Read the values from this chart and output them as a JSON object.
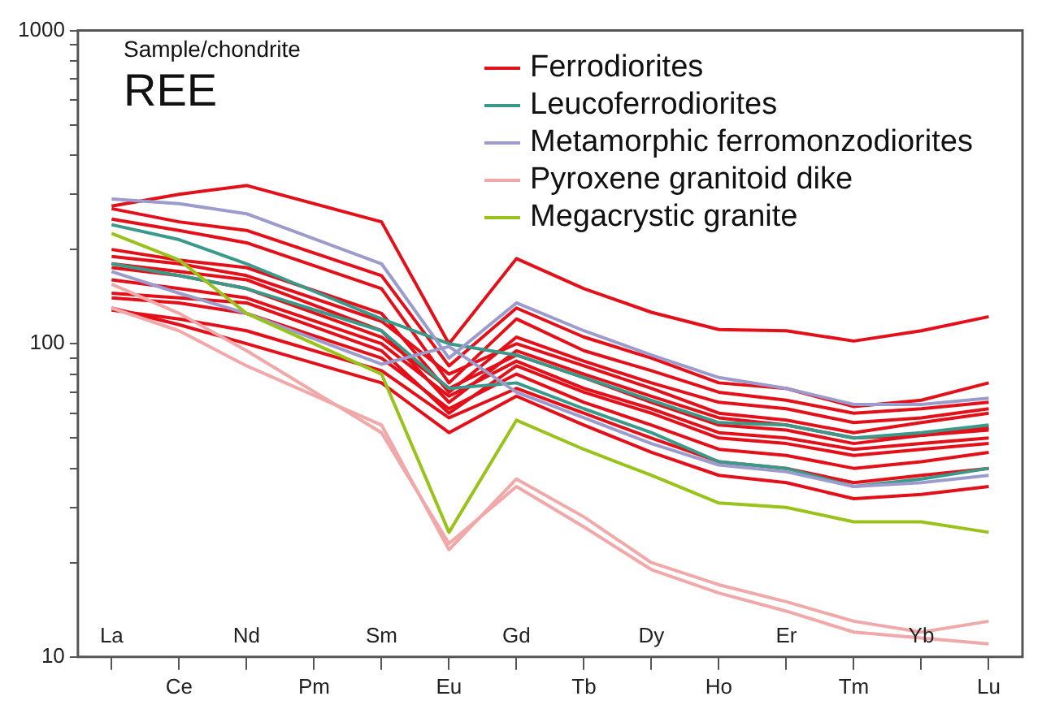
{
  "chart_data": {
    "type": "line",
    "categories": [
      "La",
      "Ce",
      "Nd",
      "Pm",
      "Sm",
      "Eu",
      "Gd",
      "Tb",
      "Dy",
      "Ho",
      "Er",
      "Tm",
      "Yb",
      "Lu"
    ],
    "log": true,
    "ylim": [
      10,
      1000
    ],
    "yticks": [
      10,
      {
        "value": 20,
        "label": null
      },
      {
        "value": 30,
        "label": null
      },
      {
        "value": 40,
        "label": null
      },
      {
        "value": 50,
        "label": null
      },
      {
        "value": 60,
        "label": null
      },
      {
        "value": 70,
        "label": null
      },
      {
        "value": 80,
        "label": null
      },
      {
        "value": 90,
        "label": null
      },
      100,
      {
        "value": 200,
        "label": null
      },
      {
        "value": 300,
        "label": null
      },
      {
        "value": 400,
        "label": null
      },
      {
        "value": 500,
        "label": null
      },
      {
        "value": 600,
        "label": null
      },
      {
        "value": 700,
        "label": null
      },
      {
        "value": 800,
        "label": null
      },
      {
        "value": 900,
        "label": null
      },
      1000
    ],
    "grid": false,
    "legend": "top right",
    "marker": "none",
    "line_style": "solid",
    "annotations": [
      "Sample/chondrite",
      "REE"
    ],
    "series": [
      {
        "name": "Ferrodiorites",
        "color": "#e3101a",
        "values": [
          275,
          300,
          320,
          null,
          245,
          100,
          187,
          150,
          126,
          111,
          110,
          102,
          110,
          122
        ]
      },
      {
        "color": "#e3101a",
        "values": [
          270,
          245,
          230,
          null,
          165,
          85,
          130,
          105,
          90,
          75,
          72,
          63,
          66,
          75
        ]
      },
      {
        "color": "#e3101a",
        "values": [
          250,
          230,
          210,
          null,
          150,
          75,
          120,
          95,
          82,
          70,
          66,
          60,
          62,
          65
        ]
      },
      {
        "color": "#e3101a",
        "values": [
          200,
          185,
          175,
          null,
          125,
          70,
          105,
          88,
          75,
          65,
          62,
          56,
          58,
          62
        ]
      },
      {
        "color": "#e3101a",
        "values": [
          190,
          180,
          165,
          null,
          118,
          80,
          100,
          85,
          72,
          60,
          57,
          52,
          56,
          60
        ]
      },
      {
        "color": "#e3101a",
        "values": [
          180,
          170,
          160,
          null,
          110,
          65,
          95,
          80,
          68,
          58,
          55,
          50,
          51,
          53
        ]
      },
      {
        "color": "#e3101a",
        "values": [
          175,
          165,
          150,
          null,
          105,
          72,
          92,
          78,
          65,
          55,
          53,
          48,
          51,
          54
        ]
      },
      {
        "color": "#e3101a",
        "values": [
          160,
          150,
          140,
          null,
          100,
          68,
          88,
          72,
          62,
          52,
          50,
          46,
          48,
          50
        ]
      },
      {
        "color": "#e3101a",
        "values": [
          145,
          140,
          135,
          null,
          95,
          60,
          85,
          70,
          60,
          50,
          48,
          44,
          46,
          48
        ]
      },
      {
        "color": "#e3101a",
        "values": [
          140,
          135,
          125,
          null,
          90,
          62,
          80,
          65,
          55,
          46,
          44,
          40,
          42,
          45
        ]
      },
      {
        "color": "#e3101a",
        "values": [
          128,
          120,
          110,
          null,
          82,
          58,
          72,
          60,
          50,
          42,
          40,
          36,
          38,
          40
        ]
      },
      {
        "color": "#e3101a",
        "values": [
          130,
          115,
          100,
          null,
          75,
          52,
          68,
          55,
          45,
          38,
          36,
          32,
          33,
          35
        ]
      },
      {
        "name": "Leucoferrodiorites",
        "color": "#3a9a8a",
        "values": [
          240,
          215,
          180,
          null,
          120,
          100,
          92,
          78,
          66,
          56,
          55,
          50,
          52,
          55
        ]
      },
      {
        "color": "#3a9a8a",
        "values": [
          180,
          165,
          150,
          null,
          110,
          72,
          75,
          62,
          52,
          42,
          40,
          35,
          37,
          40
        ]
      },
      {
        "name": "Metamorphic ferromonzodiorites",
        "color": "#9c9ccc",
        "values": [
          290,
          280,
          260,
          null,
          180,
          90,
          135,
          110,
          92,
          78,
          72,
          64,
          64,
          67
        ]
      },
      {
        "color": "#9c9ccc",
        "values": [
          170,
          145,
          125,
          null,
          86,
          98,
          70,
          58,
          48,
          41,
          39,
          35,
          36,
          38
        ]
      },
      {
        "name": "Pyroxene granitoid dike",
        "color": "#f0a8a8",
        "values": [
          130,
          110,
          85,
          null,
          55,
          22,
          37,
          28,
          20,
          17,
          15,
          13,
          12,
          13
        ]
      },
      {
        "color": "#f0a8a8",
        "values": [
          155,
          125,
          95,
          null,
          52,
          23,
          35,
          26,
          19,
          16,
          14,
          12,
          11.5,
          11
        ]
      },
      {
        "name": "Megacrystic granite",
        "color": "#99c21a",
        "values": [
          225,
          185,
          125,
          null,
          80,
          25,
          57,
          46,
          38,
          31,
          30,
          27,
          27,
          25
        ]
      }
    ]
  }
}
